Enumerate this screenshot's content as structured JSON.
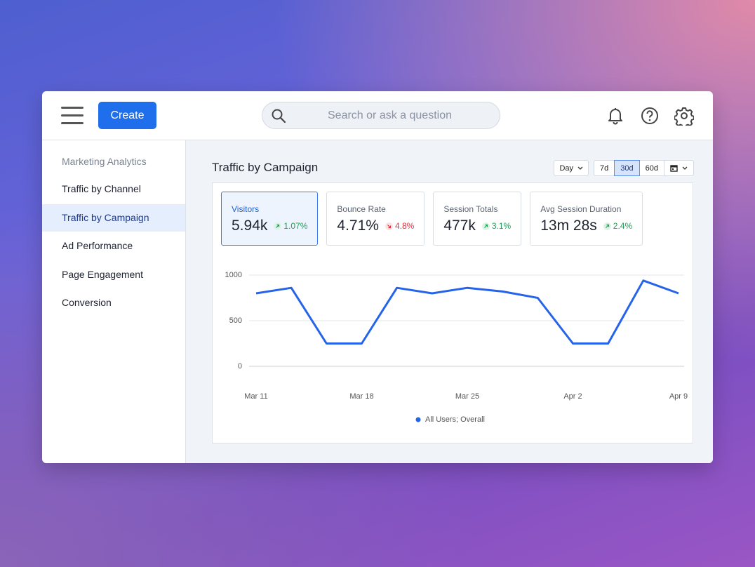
{
  "header": {
    "create_button": "Create",
    "search_placeholder": "Search or ask a question"
  },
  "sidebar": {
    "section_title": "Marketing Analytics",
    "items": [
      "Traffic by Channel",
      "Traffic by Campaign",
      "Ad Performance",
      "Page Engagement",
      "Conversion"
    ],
    "active_index": 1
  },
  "panel": {
    "title": "Traffic by Campaign",
    "interval": "Day",
    "ranges": [
      "7d",
      "30d",
      "60d"
    ],
    "selected_range_index": 1,
    "selected_metric_index": 0,
    "metrics": [
      {
        "label": "Visitors",
        "value": "5.94k",
        "change": "1.07%",
        "direction": "up"
      },
      {
        "label": "Bounce Rate",
        "value": "4.71%",
        "change": "4.8%",
        "direction": "down"
      },
      {
        "label": "Session Totals",
        "value": "477k",
        "change": "3.1%",
        "direction": "up"
      },
      {
        "label": "Avg Session Duration",
        "value": "13m 28s",
        "change": "2.4%",
        "direction": "up"
      }
    ]
  },
  "chart_data": {
    "type": "line",
    "categories": [
      "Mar 11",
      null,
      null,
      "Mar 18",
      null,
      null,
      "Mar 25",
      null,
      null,
      "Apr 2",
      null,
      null,
      "Apr 9"
    ],
    "series": [
      {
        "name": "All Users; Overall",
        "color": "#2563eb",
        "values": [
          800,
          860,
          250,
          250,
          860,
          800,
          860,
          820,
          750,
          250,
          250,
          940,
          800
        ]
      }
    ],
    "ylim": [
      0,
      1000
    ],
    "yticks": [
      0,
      500,
      1000
    ],
    "grid": true
  }
}
